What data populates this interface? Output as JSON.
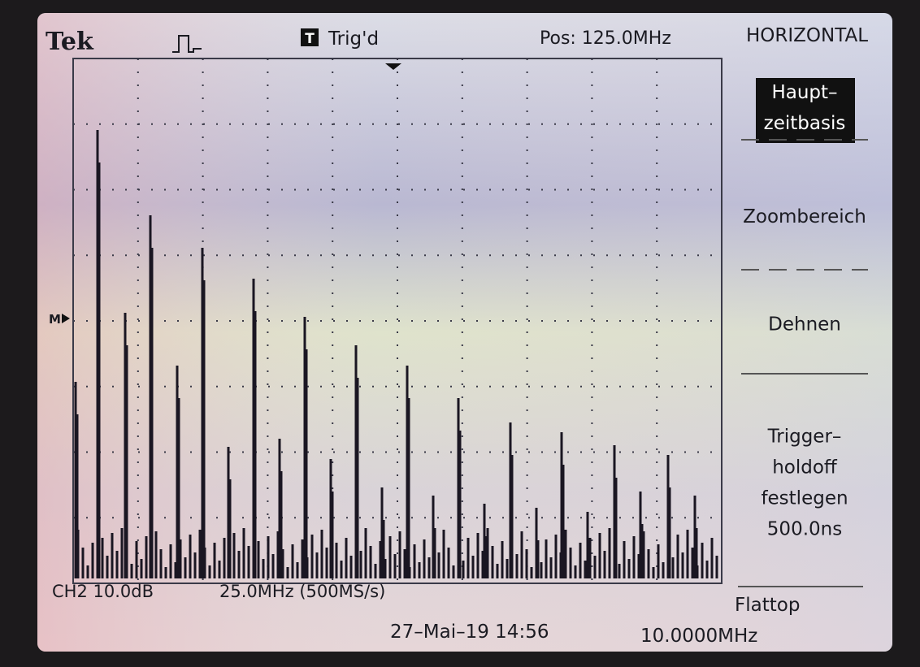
{
  "header": {
    "brand": "Tek",
    "trigger_icon": "T",
    "trigger_status": "Trig'd",
    "position": "Pos: 125.0MHz",
    "menu_title": "HORIZONTAL"
  },
  "marker": "M",
  "menu": {
    "items": [
      {
        "lines": [
          "Haupt–",
          "zeitbasis"
        ],
        "selected": true
      },
      {
        "lines": [
          "Zoombereich"
        ],
        "selected": false
      },
      {
        "lines": [
          "Dehnen"
        ],
        "selected": false
      },
      {
        "lines": [
          "Trigger–",
          "holdoff",
          "festlegen",
          "500.0ns"
        ],
        "selected": false
      }
    ]
  },
  "footer": {
    "channel": "CH2 10.0dB",
    "scale": "25.0MHz (500MS/s)",
    "window": "Flattop",
    "datetime": "27–Mai–19 14:56",
    "frequency": "10.0000MHz"
  }
}
